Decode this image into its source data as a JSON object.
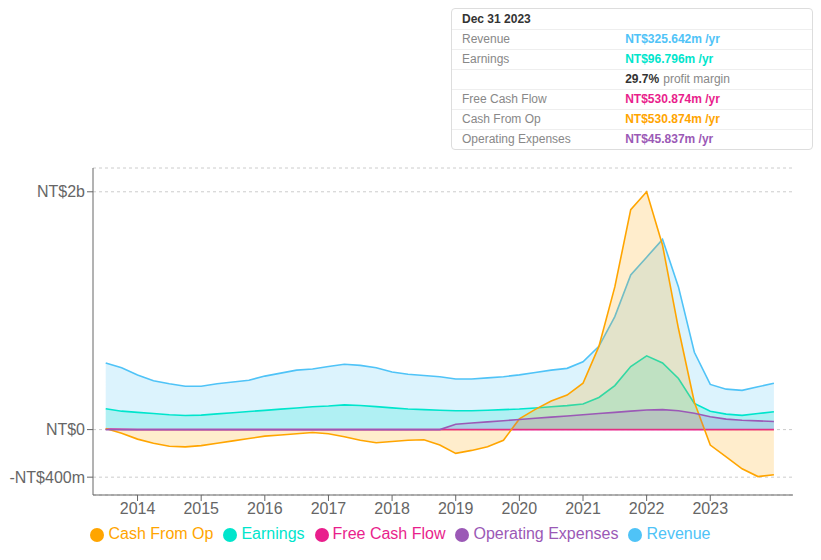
{
  "chart_data": {
    "type": "area",
    "x": [
      2013.5,
      2013.75,
      2014.0,
      2014.25,
      2014.5,
      2014.75,
      2015.0,
      2015.25,
      2015.5,
      2015.75,
      2016.0,
      2016.25,
      2016.5,
      2016.75,
      2017.0,
      2017.25,
      2017.5,
      2017.75,
      2018.0,
      2018.25,
      2018.5,
      2018.75,
      2019.0,
      2019.25,
      2019.5,
      2019.75,
      2020.0,
      2020.25,
      2020.5,
      2020.75,
      2021.0,
      2021.25,
      2021.5,
      2021.75,
      2022.0,
      2022.25,
      2022.5,
      2022.75,
      2023.0,
      2023.25,
      2023.5,
      2023.75,
      2024.0
    ],
    "xlim": [
      2013.3,
      2024.3
    ],
    "xticks": [
      2014,
      2015,
      2016,
      2017,
      2018,
      2019,
      2020,
      2021,
      2022,
      2023
    ],
    "ylim": [
      -550,
      2200
    ],
    "yticks": [
      {
        "value": -400,
        "label": "-NT$400m"
      },
      {
        "value": 0,
        "label": "NT$0"
      },
      {
        "value": 2000,
        "label": "NT$2b"
      }
    ],
    "grid": true,
    "legend": "bottom",
    "series": [
      {
        "name": "Revenue",
        "color": "#4fc3f7",
        "values": [
          560,
          520,
          460,
          410,
          385,
          365,
          365,
          385,
          400,
          415,
          450,
          475,
          500,
          510,
          530,
          550,
          540,
          520,
          485,
          465,
          455,
          445,
          425,
          425,
          435,
          445,
          460,
          480,
          500,
          515,
          570,
          700,
          950,
          1300,
          1450,
          1600,
          1200,
          650,
          380,
          340,
          330,
          360,
          390
        ]
      },
      {
        "name": "Earnings",
        "color": "#00e5cc",
        "values": [
          175,
          155,
          145,
          135,
          125,
          118,
          122,
          132,
          142,
          152,
          162,
          172,
          182,
          192,
          198,
          208,
          203,
          193,
          183,
          173,
          168,
          163,
          158,
          158,
          163,
          168,
          173,
          182,
          192,
          202,
          215,
          270,
          370,
          530,
          620,
          560,
          430,
          220,
          155,
          130,
          120,
          135,
          150
        ]
      },
      {
        "name": "Free Cash Flow",
        "color": "#e91e8c",
        "values": [
          5,
          2,
          0,
          0,
          0,
          0,
          0,
          0,
          0,
          0,
          0,
          0,
          0,
          0,
          0,
          0,
          0,
          0,
          0,
          0,
          0,
          0,
          0,
          0,
          0,
          0,
          0,
          0,
          0,
          0,
          0,
          0,
          0,
          0,
          0,
          0,
          0,
          0,
          0,
          0,
          0,
          0,
          0
        ]
      },
      {
        "name": "Cash From Op",
        "color": "#ffa500",
        "values": [
          10,
          -30,
          -80,
          -115,
          -140,
          -145,
          -135,
          -115,
          -95,
          -75,
          -55,
          -45,
          -35,
          -25,
          -35,
          -60,
          -90,
          -110,
          -100,
          -90,
          -85,
          -130,
          -200,
          -175,
          -145,
          -90,
          90,
          170,
          240,
          290,
          390,
          700,
          1200,
          1850,
          2000,
          1550,
          850,
          230,
          -130,
          -230,
          -330,
          -395,
          -380
        ]
      },
      {
        "name": "Operating Expenses",
        "color": "#9b59b6",
        "values": [
          0,
          0,
          0,
          0,
          0,
          0,
          0,
          0,
          0,
          0,
          0,
          0,
          0,
          0,
          0,
          0,
          0,
          0,
          0,
          0,
          0,
          0,
          45,
          55,
          65,
          75,
          85,
          95,
          105,
          115,
          125,
          135,
          145,
          155,
          165,
          168,
          158,
          138,
          108,
          88,
          78,
          73,
          68
        ]
      }
    ],
    "infobox": {
      "title": "Dec 31 2023",
      "rows": [
        {
          "label": "Revenue",
          "value": "NT$325.642m /yr",
          "color": "#4fc3f7"
        },
        {
          "label": "Earnings",
          "value": "NT$96.796m /yr",
          "color": "#00e5cc"
        },
        {
          "value": "29.7%",
          "text": "profit margin",
          "color": "#ffffff"
        },
        {
          "label": "Free Cash Flow",
          "value": "NT$530.874m /yr",
          "color": "#e91e8c"
        },
        {
          "label": "Cash From Op",
          "value": "NT$530.874m /yr",
          "color": "#ffa500"
        },
        {
          "label": "Operating Expenses",
          "value": "NT$45.837m /yr",
          "color": "#9b59b6"
        }
      ]
    }
  }
}
